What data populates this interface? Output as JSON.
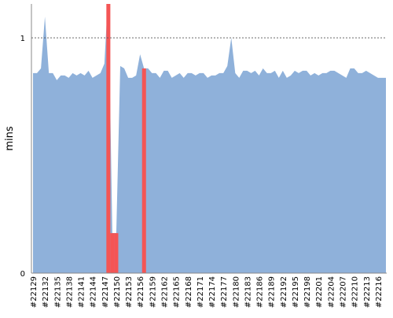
{
  "chart_data": {
    "type": "area",
    "y_label": "mins",
    "categories": [
      "#22129",
      null,
      null,
      "#22132",
      null,
      null,
      "#22135",
      null,
      null,
      "#22138",
      null,
      null,
      "#22141",
      null,
      null,
      "#22144",
      null,
      null,
      "#22147",
      null,
      null,
      "#22150",
      null,
      null,
      "#22153",
      null,
      null,
      "#22156",
      null,
      null,
      "#22159",
      null,
      null,
      "#22162",
      null,
      null,
      "#22165",
      null,
      null,
      "#22168",
      null,
      null,
      "#22171",
      null,
      null,
      "#22174",
      null,
      null,
      "#22177",
      null,
      null,
      "#22180",
      null,
      null,
      "#22183",
      null,
      null,
      "#22186",
      null,
      null,
      "#22189",
      null,
      null,
      "#22192",
      null,
      null,
      "#22195",
      null,
      null,
      "#22198",
      null,
      null,
      "#22201",
      null,
      null,
      "#22204",
      null,
      null,
      "#22207",
      null,
      null,
      "#22210",
      null,
      null,
      "#22213",
      null,
      null,
      "#22216",
      null,
      null
    ],
    "series": [
      {
        "color": "#8fb1da",
        "values": [
          0.85,
          0.85,
          0.87,
          1.09,
          0.85,
          0.85,
          0.82,
          0.84,
          0.84,
          0.83,
          0.85,
          0.84,
          0.85,
          0.84,
          0.86,
          0.83,
          0.84,
          0.85,
          0.89,
          1.2,
          0.17,
          0.17,
          0.88,
          0.87,
          0.83,
          0.83,
          0.84,
          0.93,
          0.87,
          0.87,
          0.85,
          0.85,
          0.83,
          0.86,
          0.86,
          0.83,
          0.84,
          0.85,
          0.83,
          0.85,
          0.85,
          0.84,
          0.85,
          0.85,
          0.83,
          0.84,
          0.84,
          0.85,
          0.85,
          0.88,
          1.0,
          0.85,
          0.83,
          0.86,
          0.86,
          0.85,
          0.86,
          0.84,
          0.87,
          0.85,
          0.85,
          0.86,
          0.83,
          0.86,
          0.83,
          0.84,
          0.86,
          0.85,
          0.86,
          0.86,
          0.84,
          0.85,
          0.84,
          0.85,
          0.85,
          0.86,
          0.86,
          0.85,
          0.84,
          0.83,
          0.87,
          0.87,
          0.85,
          0.85,
          0.86,
          0.85,
          0.84,
          0.83,
          0.83,
          0.83
        ]
      },
      {
        "type": "bar",
        "color": "#f45555",
        "values": [
          null,
          null,
          null,
          null,
          null,
          null,
          null,
          null,
          null,
          null,
          null,
          null,
          null,
          null,
          null,
          null,
          null,
          null,
          null,
          1.2,
          0.17,
          0.17,
          null,
          null,
          null,
          null,
          null,
          null,
          0.87,
          null,
          null,
          null,
          null,
          null,
          null,
          null,
          null,
          null,
          null,
          null,
          null,
          null,
          null,
          null,
          null,
          null,
          null,
          null,
          null,
          null,
          null,
          null,
          null,
          null,
          null,
          null,
          null,
          null,
          null,
          null,
          null,
          null,
          null,
          null,
          null,
          null,
          null,
          null,
          null,
          null,
          null,
          null,
          null,
          null,
          null,
          null,
          null,
          null,
          null,
          null,
          null,
          null,
          null,
          null,
          null,
          null,
          null,
          null,
          null,
          null
        ]
      }
    ],
    "ylim": [
      0,
      1.144
    ],
    "yticks": [
      0,
      1
    ],
    "grid": true
  }
}
